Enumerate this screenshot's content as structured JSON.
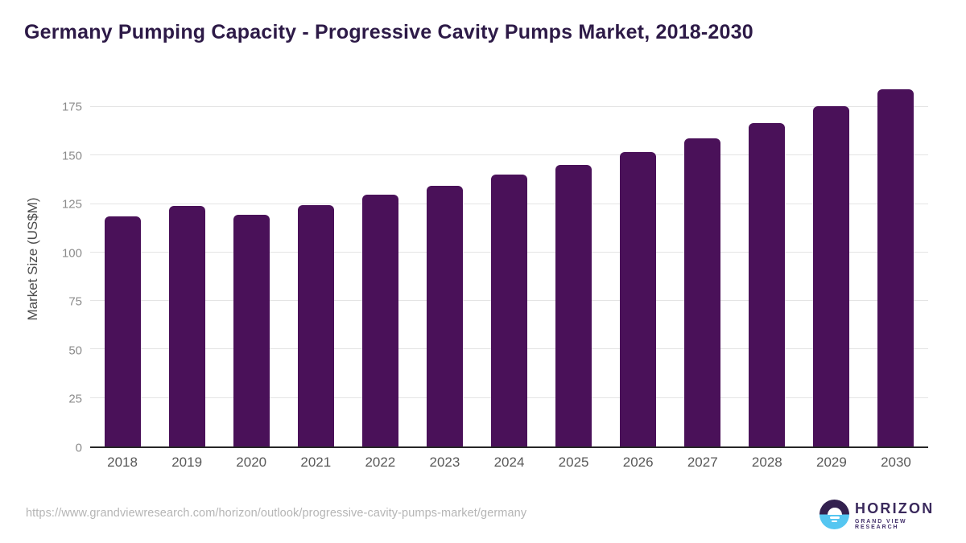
{
  "header": {
    "title": "Germany Pumping Capacity - Progressive Cavity Pumps Market, 2018-2030"
  },
  "chart_data": {
    "type": "bar",
    "title": "Germany Pumping Capacity - Progressive Cavity Pumps Market, 2018-2030",
    "categories": [
      "2018",
      "2019",
      "2020",
      "2021",
      "2022",
      "2023",
      "2024",
      "2025",
      "2026",
      "2027",
      "2028",
      "2029",
      "2030"
    ],
    "values": [
      118.6,
      124.0,
      119.3,
      124.4,
      130.0,
      134.5,
      140.2,
      145.1,
      152.0,
      159.0,
      166.9,
      175.4,
      184.0
    ],
    "xlabel": "",
    "ylabel": "Market Size (US$M)",
    "ylim": [
      0,
      190
    ],
    "yticks": [
      0,
      25,
      50,
      75,
      100,
      125,
      150,
      175
    ],
    "grid": true,
    "legend": "none",
    "bar_color": "#4a1159"
  },
  "colors": {
    "title_text": "#2d1a47",
    "bar": "#4a1159",
    "gridline": "#e4e4e4",
    "axis_line": "#262626",
    "y_tick_text": "#8c8c8c",
    "x_tick_text": "#595959",
    "url_text": "#b5b5b5",
    "logo_purple": "#33214f",
    "logo_blue": "#55c6f1"
  },
  "footer": {
    "source_url": "https://www.grandviewresearch.com/horizon/outlook/progressive-cavity-pumps-market/germany",
    "logo": {
      "brand": "HORIZON",
      "sub_brand": "GRAND VIEW RESEARCH"
    }
  }
}
